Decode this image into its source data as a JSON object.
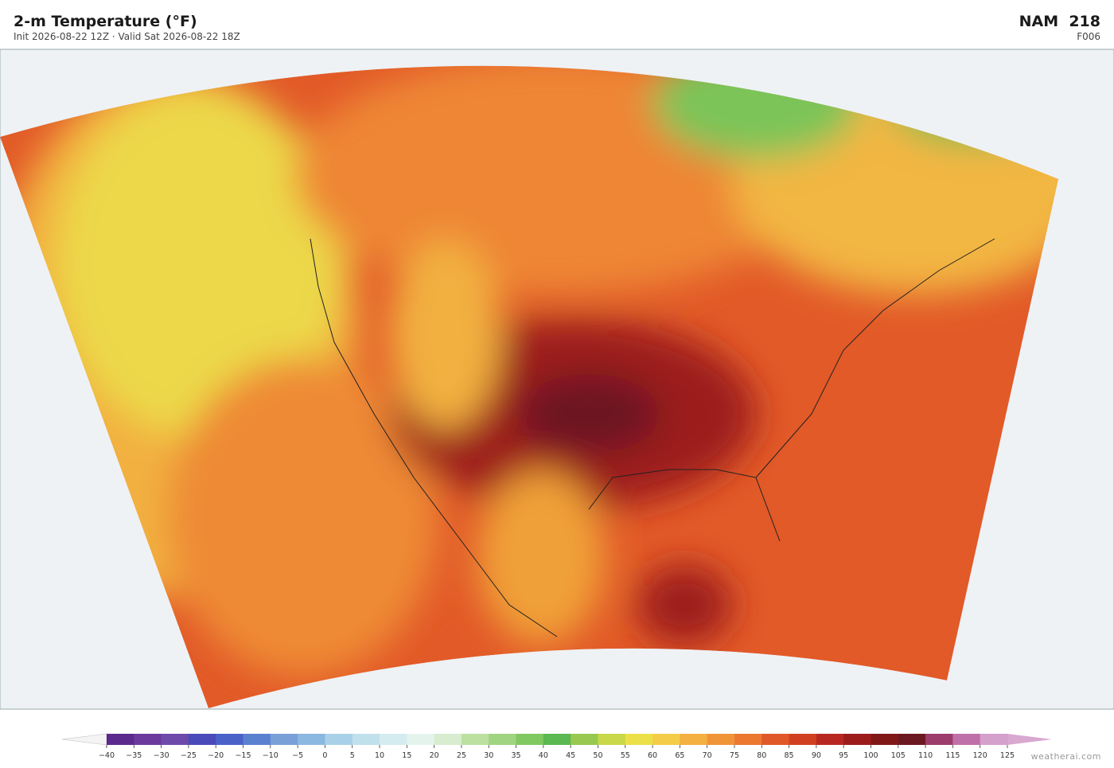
{
  "header": {
    "title": "2-m Temperature  (°F)",
    "subtitle": "Init 2026-08-22 12Z  ·  Valid Sat 2026-08-22 18Z",
    "model": "NAM  218",
    "forecast_hour": "F006"
  },
  "colorbar": {
    "ticks": [
      {
        "value": -40,
        "label": "−40"
      },
      {
        "value": -35,
        "label": "−35"
      },
      {
        "value": -30,
        "label": "−30"
      },
      {
        "value": -25,
        "label": "−25"
      },
      {
        "value": -20,
        "label": "−20"
      },
      {
        "value": -15,
        "label": "−15"
      },
      {
        "value": -10,
        "label": "−10"
      },
      {
        "value": -5,
        "label": "−5"
      },
      0,
      5,
      10,
      15,
      20,
      25,
      30,
      35,
      40,
      45,
      50,
      55,
      60,
      65,
      70,
      75,
      80,
      85,
      90,
      95,
      100,
      105,
      110,
      115,
      120,
      125
    ],
    "colors": [
      "#5b2a8c",
      "#6b3a9c",
      "#6e4aaa",
      "#4a4aba",
      "#4a62c8",
      "#5a80d0",
      "#7aa0d8",
      "#8ab8e0",
      "#a8d0e8",
      "#c0e0ec",
      "#d4ecf0",
      "#e4f4ec",
      "#d8ecd0",
      "#bce0a0",
      "#a0d480",
      "#80c860",
      "#5cb850",
      "#98c850",
      "#c8d848",
      "#ece048",
      "#f4cc48",
      "#f4b040",
      "#f09438",
      "#ec7830",
      "#e05828",
      "#d04020",
      "#b82820",
      "#9c1c1c",
      "#801818",
      "#6c1820",
      "#9c3c6c",
      "#c070a8",
      "#d4a0cc"
    ],
    "under_color": "#f4f4f4",
    "over_color": "#d8a8d0"
  },
  "footer": {
    "credit": "weatherai.com"
  }
}
